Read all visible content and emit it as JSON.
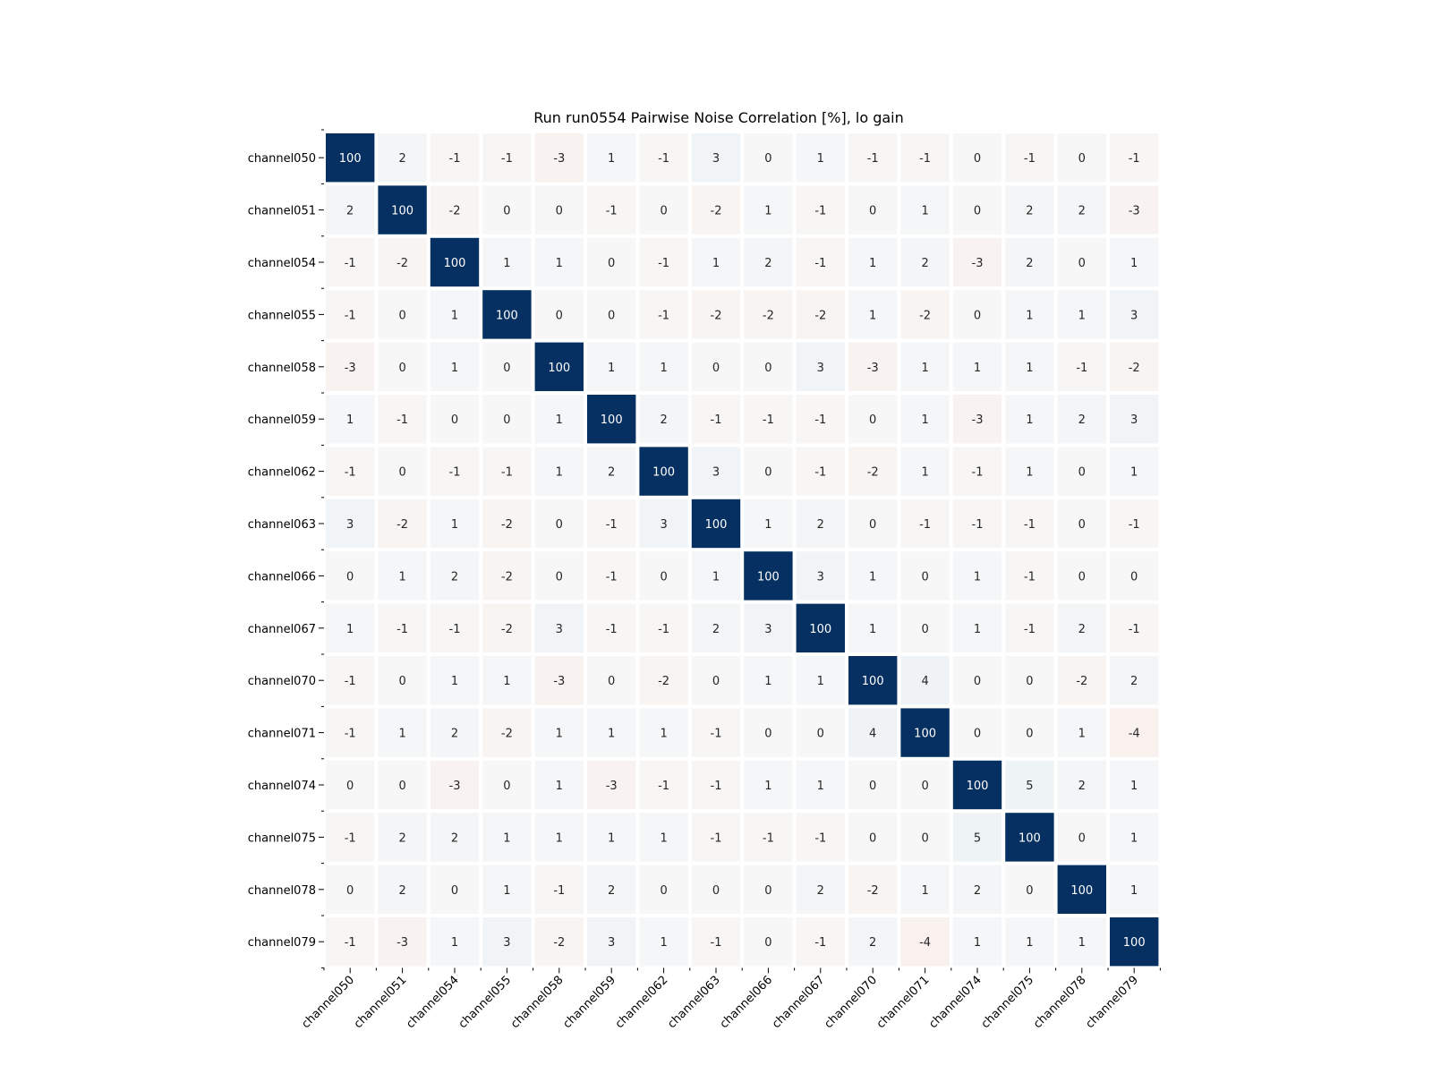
{
  "chart_data": {
    "type": "heatmap",
    "title": "Run run0554 Pairwise Noise Correlation [%], lo gain",
    "xlabel": "",
    "ylabel": "",
    "colormap": "RdBu diverging (red = negative, blue = positive)",
    "value_range": [
      -100,
      100
    ],
    "colors": {
      "positive_max": "#053061",
      "neutral": "#f7f7f7",
      "negative_max": "#67001f",
      "cell_border": "#ffffff"
    },
    "x_categories": [
      "channel050",
      "channel051",
      "channel054",
      "channel055",
      "channel058",
      "channel059",
      "channel062",
      "channel063",
      "channel066",
      "channel067",
      "channel070",
      "channel071",
      "channel074",
      "channel075",
      "channel078",
      "channel079"
    ],
    "y_categories": [
      "channel050",
      "channel051",
      "channel054",
      "channel055",
      "channel058",
      "channel059",
      "channel062",
      "channel063",
      "channel066",
      "channel067",
      "channel070",
      "channel071",
      "channel074",
      "channel075",
      "channel078",
      "channel079"
    ],
    "values": [
      [
        100,
        2,
        -1,
        -1,
        -3,
        1,
        -1,
        3,
        0,
        1,
        -1,
        -1,
        0,
        -1,
        0,
        -1
      ],
      [
        2,
        100,
        -2,
        0,
        0,
        -1,
        0,
        -2,
        1,
        -1,
        0,
        1,
        0,
        2,
        2,
        -3
      ],
      [
        -1,
        -2,
        100,
        1,
        1,
        0,
        -1,
        1,
        2,
        -1,
        1,
        2,
        -3,
        2,
        0,
        1
      ],
      [
        -1,
        0,
        1,
        100,
        0,
        0,
        -1,
        -2,
        -2,
        -2,
        1,
        -2,
        0,
        1,
        1,
        3
      ],
      [
        -3,
        0,
        1,
        0,
        100,
        1,
        1,
        0,
        0,
        3,
        -3,
        1,
        1,
        1,
        -1,
        -2
      ],
      [
        1,
        -1,
        0,
        0,
        1,
        100,
        2,
        -1,
        -1,
        -1,
        0,
        1,
        -3,
        1,
        2,
        3
      ],
      [
        -1,
        0,
        -1,
        -1,
        1,
        2,
        100,
        3,
        0,
        -1,
        -2,
        1,
        -1,
        1,
        0,
        1
      ],
      [
        3,
        -2,
        1,
        -2,
        0,
        -1,
        3,
        100,
        1,
        2,
        0,
        -1,
        -1,
        -1,
        0,
        -1
      ],
      [
        0,
        1,
        2,
        -2,
        0,
        -1,
        0,
        1,
        100,
        3,
        1,
        0,
        1,
        -1,
        0,
        0
      ],
      [
        1,
        -1,
        -1,
        -2,
        3,
        -1,
        -1,
        2,
        3,
        100,
        1,
        0,
        1,
        -1,
        2,
        -1
      ],
      [
        -1,
        0,
        1,
        1,
        -3,
        0,
        -2,
        0,
        1,
        1,
        100,
        4,
        0,
        0,
        -2,
        2
      ],
      [
        -1,
        1,
        2,
        -2,
        1,
        1,
        1,
        -1,
        0,
        0,
        4,
        100,
        0,
        0,
        1,
        -4
      ],
      [
        0,
        0,
        -3,
        0,
        1,
        -3,
        -1,
        -1,
        1,
        1,
        0,
        0,
        100,
        5,
        2,
        1
      ],
      [
        -1,
        2,
        2,
        1,
        1,
        1,
        1,
        -1,
        -1,
        -1,
        0,
        0,
        5,
        100,
        0,
        1
      ],
      [
        0,
        2,
        0,
        1,
        -1,
        2,
        0,
        0,
        0,
        2,
        -2,
        1,
        2,
        0,
        100,
        1
      ],
      [
        -1,
        -3,
        1,
        3,
        -2,
        3,
        1,
        -1,
        0,
        -1,
        2,
        -4,
        1,
        1,
        1,
        100
      ]
    ],
    "grid": false,
    "legend": "none"
  }
}
